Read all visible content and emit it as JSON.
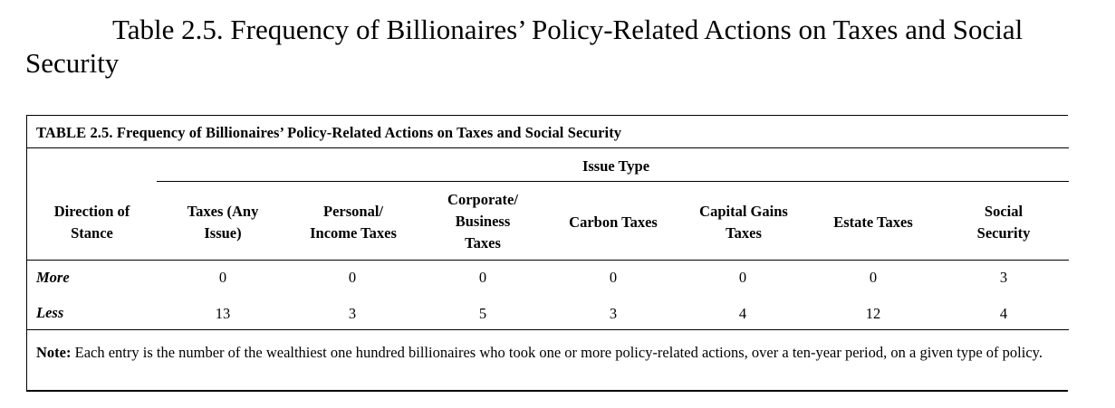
{
  "title": "Table 2.5. Frequency of Billionaires’ Policy-Related Actions on Taxes and Social Security",
  "caption": "TABLE 2.5. Frequency of Billionaires’ Policy-Related Actions on Taxes and Social Security",
  "header": {
    "group_label": "Issue Type",
    "row_header": [
      "Direction of",
      "Stance"
    ],
    "columns": [
      [
        "Taxes (Any",
        "Issue)"
      ],
      [
        "Personal/",
        "Income Taxes"
      ],
      [
        "Corporate/",
        "Business",
        "Taxes"
      ],
      [
        "Carbon Taxes"
      ],
      [
        "Capital Gains",
        "Taxes"
      ],
      [
        "Estate Taxes"
      ],
      [
        "Social",
        "Security"
      ]
    ]
  },
  "rows": [
    {
      "label": "More",
      "values": [
        "0",
        "0",
        "0",
        "0",
        "0",
        "0",
        "3"
      ]
    },
    {
      "label": "Less",
      "values": [
        "13",
        "3",
        "5",
        "3",
        "4",
        "12",
        "4"
      ]
    }
  ],
  "note": {
    "label": "Note:",
    "text": " Each entry is the number of the wealthiest one hundred billionaires who took one or more policy-related actions, over a ten-year period, on a given type of policy."
  }
}
